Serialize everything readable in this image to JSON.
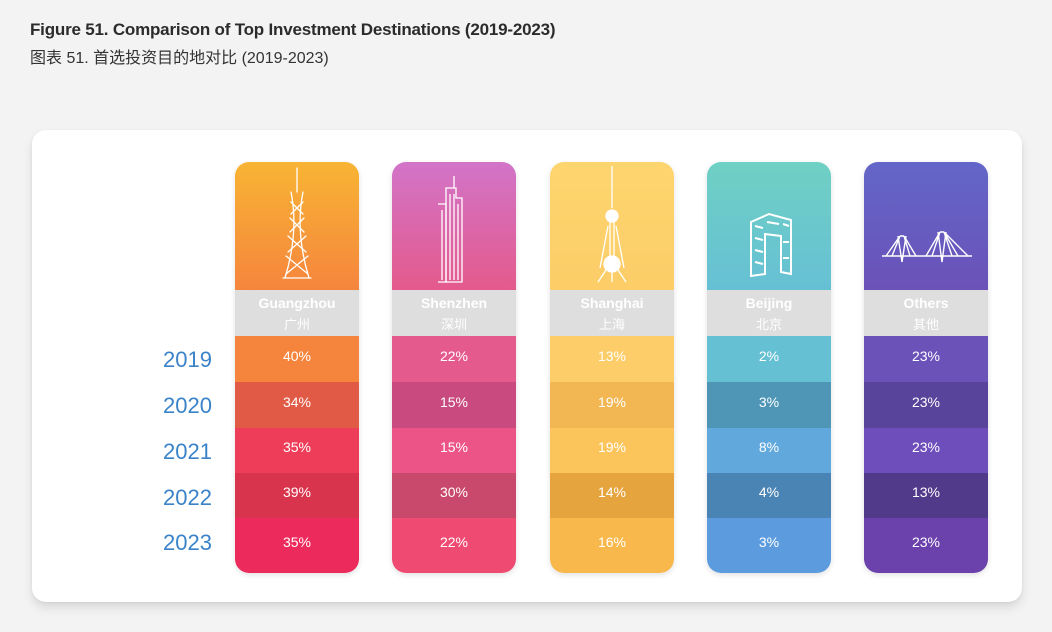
{
  "header": {
    "title_en": "Figure 51. Comparison of Top Investment Destinations (2019-2023)",
    "title_zh": "图表 51. 首选投资目的地对比 (2019-2023)"
  },
  "chart_data": {
    "type": "table",
    "title": "Figure 51. Comparison of Top Investment Destinations (2019-2023)",
    "subtitle": "图表 51. 首选投资目的地对比 (2019-2023)",
    "years": [
      "2019",
      "2020",
      "2021",
      "2022",
      "2023"
    ],
    "columns": [
      {
        "name": "Guangzhou",
        "name_zh": "广州",
        "icon": "canton-tower-icon",
        "values": [
          "40%",
          "34%",
          "35%",
          "39%",
          "35%"
        ],
        "top_color": "#f8b434",
        "colors": [
          "#f5853d",
          "#e05a46",
          "#ee3d58",
          "#d8344e",
          "#ed2a5c"
        ]
      },
      {
        "name": "Shenzhen",
        "name_zh": "深圳",
        "icon": "skyscraper-icon",
        "values": [
          "22%",
          "15%",
          "15%",
          "30%",
          "22%"
        ],
        "top_color": "#d274c8",
        "colors": [
          "#e45a8c",
          "#c84a7e",
          "#ec5487",
          "#c8496c",
          "#ee4a72"
        ]
      },
      {
        "name": "Shanghai",
        "name_zh": "上海",
        "icon": "oriental-pearl-tower-icon",
        "values": [
          "13%",
          "19%",
          "19%",
          "14%",
          "16%"
        ],
        "top_color": "#fdd56e",
        "colors": [
          "#fccd68",
          "#f2b653",
          "#fcc55c",
          "#e5a43e",
          "#f9b84c"
        ]
      },
      {
        "name": "Beijing",
        "name_zh": "北京",
        "icon": "cctv-building-icon",
        "values": [
          "2%",
          "3%",
          "8%",
          "4%",
          "3%"
        ],
        "top_color": "#6fd0c4",
        "colors": [
          "#66c0d4",
          "#4f96b6",
          "#61a8dc",
          "#4a84b4",
          "#5c9cde"
        ]
      },
      {
        "name": "Others",
        "name_zh": "其他",
        "icon": "bridge-icon",
        "values": [
          "23%",
          "23%",
          "23%",
          "13%",
          "23%"
        ],
        "top_color": "#6366c8",
        "colors": [
          "#6a52b8",
          "#58449a",
          "#6d4eba",
          "#513a8a",
          "#6b42ac"
        ]
      }
    ]
  }
}
